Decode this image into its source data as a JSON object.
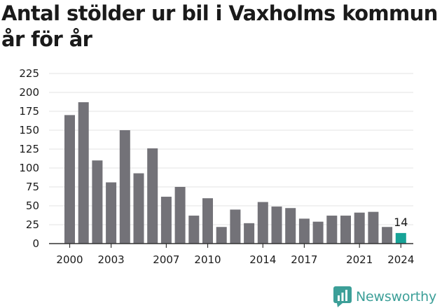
{
  "title": "Antal stölder ur bil i Vaxholms kommun år för år",
  "brand": {
    "name": "Newsworthy",
    "color": "#3c9f98",
    "icon": "newsworthy-logo-icon"
  },
  "chart_data": {
    "type": "bar",
    "title": "Antal stölder ur bil i Vaxholms kommun år för år",
    "xlabel": "",
    "ylabel": "",
    "categories": [
      2000,
      2001,
      2002,
      2003,
      2004,
      2005,
      2006,
      2007,
      2008,
      2009,
      2010,
      2011,
      2012,
      2013,
      2014,
      2015,
      2016,
      2017,
      2018,
      2019,
      2020,
      2021,
      2022,
      2023,
      2024
    ],
    "values": [
      170,
      187,
      110,
      81,
      150,
      93,
      126,
      62,
      75,
      37,
      60,
      22,
      45,
      27,
      55,
      49,
      47,
      33,
      29,
      37,
      37,
      41,
      42,
      22,
      14
    ],
    "x_tick_labels": [
      "2000",
      "2003",
      "2007",
      "2010",
      "2014",
      "2017",
      "2021",
      "2024"
    ],
    "y_ticks": [
      "0",
      "25",
      "50",
      "75",
      "100",
      "125",
      "150",
      "175",
      "200",
      "225"
    ],
    "ylim": [
      0,
      225
    ],
    "grid": true,
    "highlight": {
      "category": 2024,
      "label": "14"
    },
    "colors": {
      "bar": "#737278",
      "highlight": "#17a397",
      "grid": "#e3e3e3",
      "axis": "#333333"
    }
  }
}
